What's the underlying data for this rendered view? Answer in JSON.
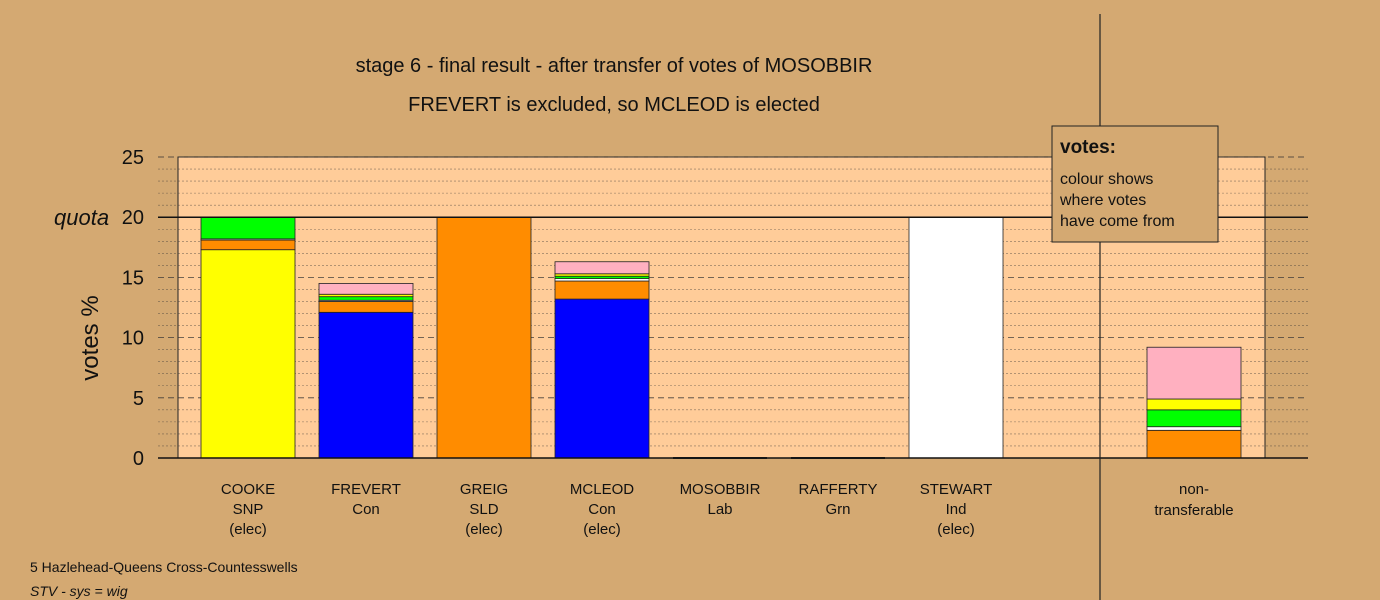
{
  "colors": {
    "SNP": "#ffff00",
    "Con": "#0000ff",
    "SLD": "#ff8c00",
    "Lab": "#ff0000",
    "Grn": "#00ff00",
    "Ind": "#ffffff",
    "NT": "#ffb0c0",
    "background": "#d4a972",
    "plot_background": "#ffcc99"
  },
  "chart_data": {
    "type": "bar",
    "stacked": true,
    "title": "stage 6 - final result - after transfer of votes of MOSOBBIR",
    "subtitle": "FREVERT is excluded, so MCLEOD is elected",
    "ylabel": "votes %",
    "ylim": [
      0,
      25
    ],
    "yticks": [
      0,
      5,
      10,
      15,
      20,
      25
    ],
    "quota": 20,
    "quota_label": "quota",
    "grid": true,
    "candidates": [
      {
        "name": "COOKE",
        "party": "SNP",
        "status": "(elec)",
        "segments": [
          {
            "from": "SNP",
            "value": 17.3
          },
          {
            "from": "SLD",
            "value": 0.8
          },
          {
            "from": "Ind",
            "value": 0.1
          },
          {
            "from": "Grn",
            "value": 1.8
          }
        ]
      },
      {
        "name": "FREVERT",
        "party": "Con",
        "status": "",
        "segments": [
          {
            "from": "Con",
            "value": 12.1
          },
          {
            "from": "SLD",
            "value": 0.9
          },
          {
            "from": "Ind",
            "value": 0.1
          },
          {
            "from": "Grn",
            "value": 0.3
          },
          {
            "from": "SNP",
            "value": 0.2
          },
          {
            "from": "NT",
            "value": 0.9
          }
        ]
      },
      {
        "name": "GREIG",
        "party": "SLD",
        "status": "(elec)",
        "segments": [
          {
            "from": "SLD",
            "value": 20.0
          }
        ]
      },
      {
        "name": "MCLEOD",
        "party": "Con",
        "status": "(elec)",
        "segments": [
          {
            "from": "Con",
            "value": 13.2
          },
          {
            "from": "SLD",
            "value": 1.5
          },
          {
            "from": "Ind",
            "value": 0.2
          },
          {
            "from": "Grn",
            "value": 0.2
          },
          {
            "from": "SNP",
            "value": 0.2
          },
          {
            "from": "NT",
            "value": 1.0
          }
        ]
      },
      {
        "name": "MOSOBBIR",
        "party": "Lab",
        "status": "",
        "segments": []
      },
      {
        "name": "RAFFERTY",
        "party": "Grn",
        "status": "",
        "segments": []
      },
      {
        "name": "STEWART",
        "party": "Ind",
        "status": "(elec)",
        "segments": [
          {
            "from": "Ind",
            "value": 20.0
          }
        ]
      }
    ],
    "nontransferable": {
      "label_line1": "non-",
      "label_line2": "transferable",
      "segments": [
        {
          "from": "SLD",
          "value": 2.3
        },
        {
          "from": "Ind",
          "value": 0.3
        },
        {
          "from": "Grn",
          "value": 1.4
        },
        {
          "from": "SNP",
          "value": 0.9
        },
        {
          "from": "NT",
          "value": 4.3
        }
      ]
    },
    "legend": {
      "title": "votes:",
      "lines": [
        "colour shows",
        "where votes",
        "have come from"
      ],
      "placement": "top-right"
    }
  },
  "footer": {
    "ward": "5 Hazlehead-Queens Cross-Countesswells",
    "system": "STV - sys = wig"
  }
}
